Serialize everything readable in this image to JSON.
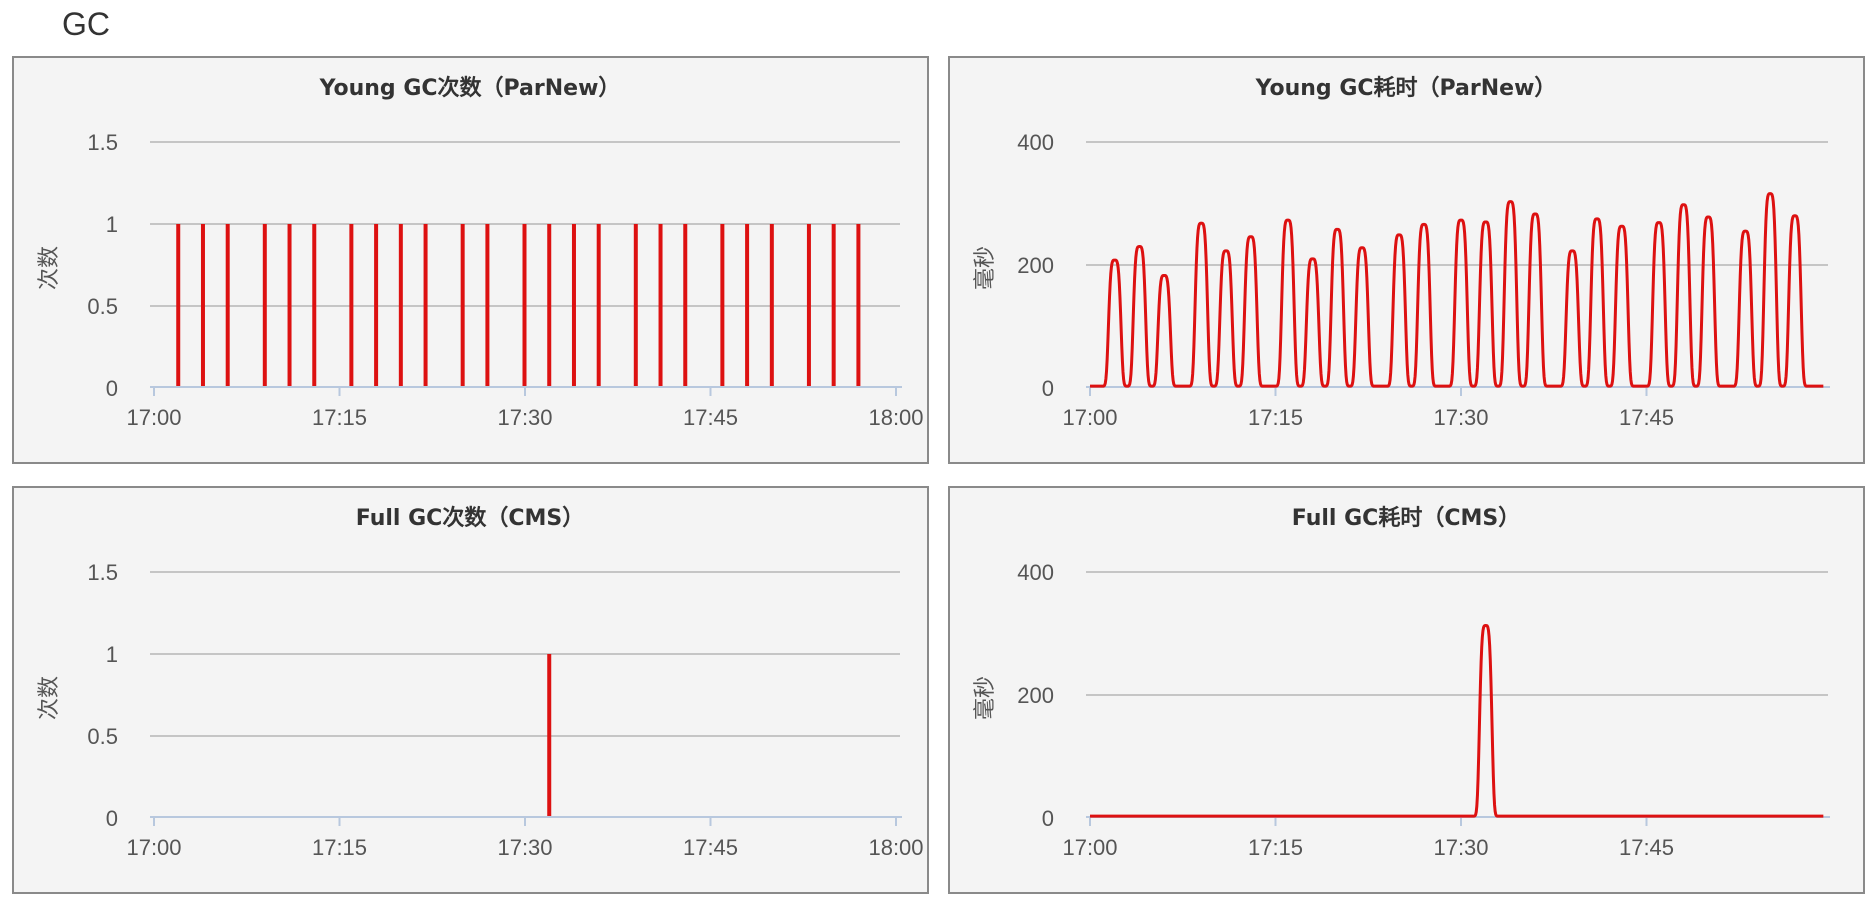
{
  "page": {
    "section_title": "GC"
  },
  "chart_data": [
    {
      "id": "young-count",
      "type": "bar",
      "title": "Young GC次数（ParNew）",
      "ylabel": "次数",
      "xlabel": "",
      "xlim": [
        0,
        60
      ],
      "ylim": [
        0,
        1.5
      ],
      "x_ticks": [
        "17:00",
        "17:15",
        "17:30",
        "17:45",
        "18:00"
      ],
      "y_ticks": [
        "0",
        "0.5",
        "1",
        "1.5"
      ],
      "grid": true,
      "color": "#dd1111",
      "x": [
        2,
        4,
        6,
        9,
        11,
        13,
        16,
        18,
        20,
        22,
        25,
        27,
        30,
        32,
        34,
        36,
        39,
        41,
        43,
        46,
        48,
        50,
        53,
        55,
        57
      ],
      "values": [
        1,
        1,
        1,
        1,
        1,
        1,
        1,
        1,
        1,
        1,
        1,
        1,
        1,
        1,
        1,
        1,
        1,
        1,
        1,
        1,
        1,
        1,
        1,
        1,
        1
      ]
    },
    {
      "id": "young-time",
      "type": "line",
      "title": "Young GC耗时（ParNew）",
      "ylabel": "毫秒",
      "xlabel": "",
      "xlim": [
        0,
        59.3
      ],
      "ylim": [
        0,
        400
      ],
      "x_ticks": [
        "17:00",
        "17:15",
        "17:30",
        "17:45"
      ],
      "y_ticks": [
        "0",
        "200",
        "400"
      ],
      "grid": true,
      "color": "#dd1111",
      "x": [
        2,
        4,
        6,
        9,
        11,
        13,
        16,
        18,
        20,
        22,
        25,
        27,
        30,
        32,
        34,
        36,
        39,
        41,
        43,
        46,
        48,
        50,
        53,
        55,
        57
      ],
      "values": [
        205,
        227,
        180,
        265,
        220,
        243,
        270,
        207,
        255,
        225,
        246,
        263,
        270,
        267,
        300,
        280,
        220,
        272,
        260,
        266,
        295,
        275,
        252,
        313,
        277
      ]
    },
    {
      "id": "full-count",
      "type": "bar",
      "title": "Full GC次数（CMS）",
      "ylabel": "次数",
      "xlabel": "",
      "xlim": [
        0,
        60
      ],
      "ylim": [
        0,
        1.5
      ],
      "x_ticks": [
        "17:00",
        "17:15",
        "17:30",
        "17:45",
        "18:00"
      ],
      "y_ticks": [
        "0",
        "0.5",
        "1",
        "1.5"
      ],
      "grid": true,
      "color": "#dd1111",
      "x": [
        32
      ],
      "values": [
        1
      ]
    },
    {
      "id": "full-time",
      "type": "line",
      "title": "Full GC耗时（CMS）",
      "ylabel": "毫秒",
      "xlabel": "",
      "xlim": [
        0,
        59.3
      ],
      "ylim": [
        0,
        400
      ],
      "x_ticks": [
        "17:00",
        "17:15",
        "17:30",
        "17:45"
      ],
      "y_ticks": [
        "0",
        "200",
        "400"
      ],
      "grid": true,
      "color": "#dd1111",
      "x": [
        32
      ],
      "values": [
        310
      ]
    }
  ]
}
